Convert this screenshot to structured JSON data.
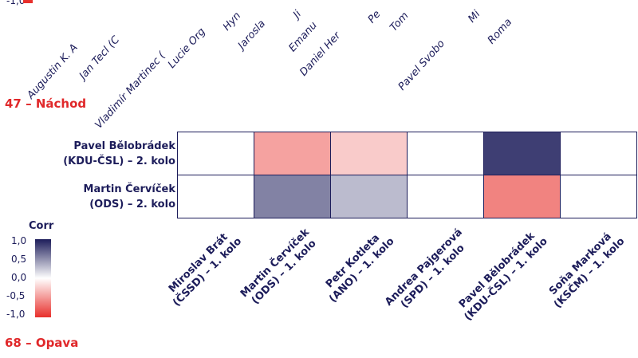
{
  "prev_chart": {
    "legend_tail_label": "-1,0",
    "x_labels": [
      "Augustin K. A",
      "Jan Tecl (C",
      "Vladimír Martinec (",
      "Lucie Org",
      "Hyn",
      "Jarosla",
      "Ji",
      "Emanu",
      "Daniel Her",
      "Pe",
      "Tom",
      "Pavel Svobo",
      "Mi",
      "Roma"
    ]
  },
  "sections": {
    "current": "47 – Náchod",
    "next": "68 – Opava"
  },
  "colors": {
    "low": "#e8302c",
    "mid": "#ffffff",
    "high": "#1c1c5a"
  },
  "chart_data": {
    "type": "heatmap",
    "title": "47 – Náchod",
    "rows": [
      "Pavel Bělobrádek\n(KDU-ČSL) – 2. kolo",
      "Martin Červíček\n(ODS) – 2. kolo"
    ],
    "columns": [
      "Miroslav Brát\n(ČSSD) – 1. kolo",
      "Martin Červíček\n(ODS) – 1. kolo",
      "Petr Kotleta\n(ANO) – 1. kolo",
      "Andrea Pajgerová\n(SPD) – 1. kolo",
      "Pavel Bělobrádek\n(KDU-ČSL) – 1. kolo",
      "Soňa Marková\n(KSČM) – 1. kolo"
    ],
    "values": [
      [
        null,
        -0.45,
        -0.25,
        null,
        0.85,
        null
      ],
      [
        null,
        0.55,
        0.3,
        null,
        -0.6,
        null
      ]
    ],
    "legend": {
      "title": "Corr",
      "ticks": [
        "1,0",
        "0,5",
        "0,0",
        "-0,5",
        "-1,0"
      ],
      "range": [
        -1,
        1
      ]
    }
  }
}
